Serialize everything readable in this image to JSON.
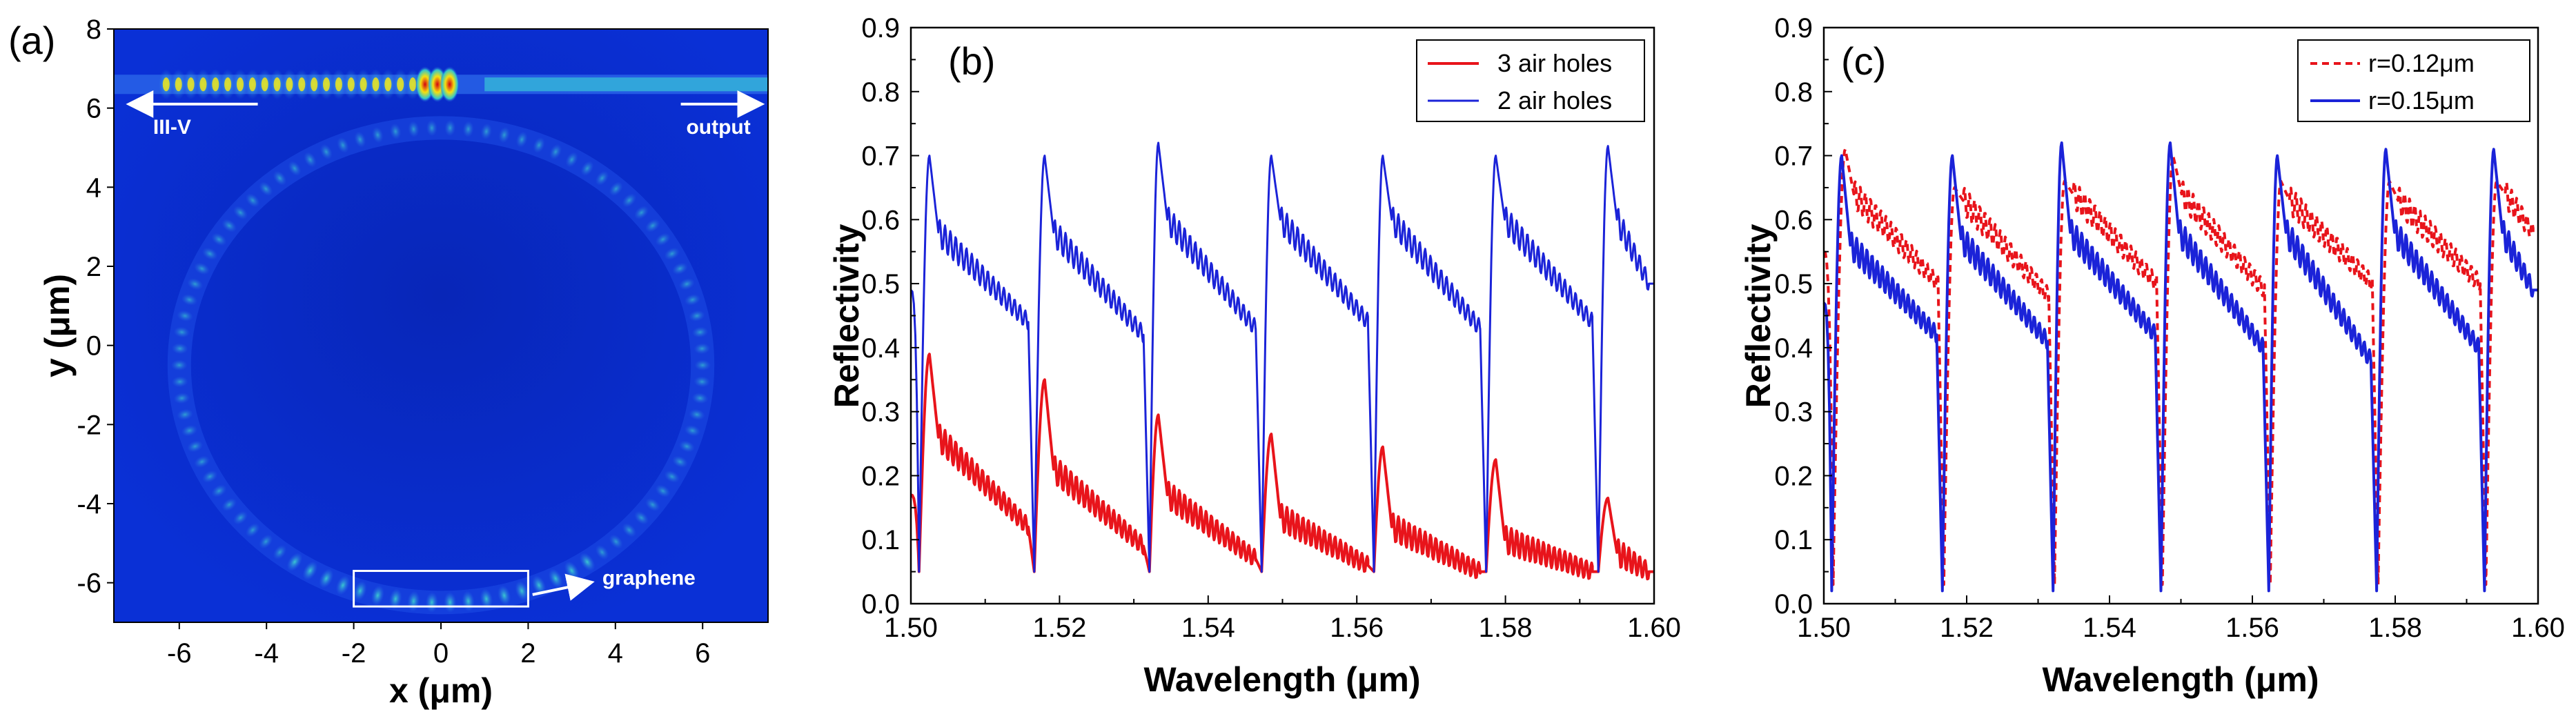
{
  "chart_data": [
    {
      "id": "a",
      "type": "heatmap",
      "panel_label": "(a)",
      "title": "",
      "xlabel": "x (μm)",
      "ylabel": "y (μm)",
      "xlim": [
        -7.5,
        7.5
      ],
      "ylim": [
        -7,
        8
      ],
      "x_ticks": [
        "-6",
        "-4",
        "-2",
        "0",
        "2",
        "4",
        "6"
      ],
      "y_ticks": [
        "8",
        "6",
        "4",
        "2",
        "0",
        "-2",
        "-4",
        "-6"
      ],
      "annotations": {
        "laser": "III-V",
        "output": "output",
        "graphene": "graphene"
      },
      "field": {
        "ring_center": [
          0,
          -0.5
        ],
        "ring_radii": [
          6.0,
          6.0
        ],
        "bus_waveguide_y": 6.6,
        "laser_section_x": [
          -6.3,
          0.2
        ],
        "graphene_box": {
          "x": [
            -2,
            2
          ],
          "y": [
            -6.6,
            -5.7
          ]
        }
      },
      "colors": {
        "background": "#0a2acc",
        "hot": "#d40010",
        "warm": "#f5e010",
        "mid": "#35c8c8"
      }
    },
    {
      "id": "b",
      "type": "line",
      "panel_label": "(b)",
      "title": "",
      "xlabel": "Wavelength (μm)",
      "ylabel": "Reflectivity",
      "xlim": [
        1.5,
        1.6
      ],
      "ylim": [
        0.0,
        0.9
      ],
      "x_ticks": [
        "1.50",
        "1.52",
        "1.54",
        "1.56",
        "1.58",
        "1.60"
      ],
      "y_ticks": [
        "0.0",
        "0.1",
        "0.2",
        "0.3",
        "0.4",
        "0.5",
        "0.6",
        "0.7",
        "0.8",
        "0.9"
      ],
      "legend_position": "top-right",
      "periods": {
        "x0": 1.5025,
        "spacing": 0.01515
      },
      "series": [
        {
          "name": "3 air holes",
          "color": "#e8141b",
          "dash": "solid",
          "dips": [
            1.5011,
            1.5166,
            1.5321,
            1.5472,
            1.5623,
            1.5774,
            1.5925
          ],
          "peaks": [
            1.5025,
            1.518,
            1.5333,
            1.5485,
            1.5635,
            1.5787,
            1.5938
          ],
          "peak_values": [
            0.39,
            0.35,
            0.295,
            0.265,
            0.245,
            0.225,
            0.165
          ],
          "tail_start": [
            0.26,
            0.21,
            0.17,
            0.135,
            0.12,
            0.1,
            0.08
          ],
          "tail_end": [
            0.12,
            0.09,
            0.07,
            0.06,
            0.05,
            0.05,
            0.05
          ],
          "dip_value": 0.05
        },
        {
          "name": "2 air holes",
          "color": "#1b23d8",
          "dash": "solid",
          "dips": [
            1.5011,
            1.5166,
            1.5321,
            1.5472,
            1.5623,
            1.5774,
            1.5925
          ],
          "peaks": [
            1.5025,
            1.518,
            1.5333,
            1.5485,
            1.5635,
            1.5787,
            1.5938
          ],
          "peak_values": [
            0.7,
            0.7,
            0.72,
            0.7,
            0.7,
            0.7,
            0.715
          ],
          "tail_start": [
            0.58,
            0.58,
            0.6,
            0.6,
            0.6,
            0.6,
            0.6
          ],
          "tail_end": [
            0.44,
            0.42,
            0.43,
            0.44,
            0.43,
            0.44,
            0.5
          ],
          "dip_value": 0.05
        }
      ]
    },
    {
      "id": "c",
      "type": "line",
      "panel_label": "(c)",
      "title": "",
      "xlabel": "Wavelength (μm)",
      "ylabel": "Reflectivity",
      "xlim": [
        1.5,
        1.6
      ],
      "ylim": [
        0.0,
        0.9
      ],
      "x_ticks": [
        "1.50",
        "1.52",
        "1.54",
        "1.56",
        "1.58",
        "1.60"
      ],
      "y_ticks": [
        "0.0",
        "0.1",
        "0.2",
        "0.3",
        "0.4",
        "0.5",
        "0.6",
        "0.7",
        "0.8",
        "0.9"
      ],
      "legend_position": "top-right",
      "series": [
        {
          "name": "r=0.12μm",
          "color": "#e8141b",
          "dash": "dashed",
          "dips": [
            1.5013,
            1.5168,
            1.5323,
            1.5474,
            1.5625,
            1.5776,
            1.5927
          ],
          "peaks": [
            1.503,
            1.5183,
            1.5337,
            1.5489,
            1.564,
            1.5792,
            1.5942
          ],
          "peak_values": [
            0.71,
            0.65,
            0.66,
            0.7,
            0.66,
            0.66,
            0.66
          ],
          "tail_start": [
            0.64,
            0.63,
            0.64,
            0.64,
            0.63,
            0.63,
            0.64
          ],
          "tail_end": [
            0.5,
            0.48,
            0.5,
            0.49,
            0.5,
            0.5,
            0.58
          ],
          "dip_value": 0.03
        },
        {
          "name": "r=0.15μm",
          "color": "#1b23d8",
          "dash": "solid",
          "dips": [
            1.5011,
            1.5166,
            1.5321,
            1.5472,
            1.5623,
            1.5774,
            1.5925
          ],
          "peaks": [
            1.5025,
            1.518,
            1.5333,
            1.5485,
            1.5635,
            1.5787,
            1.5938
          ],
          "peak_values": [
            0.7,
            0.7,
            0.72,
            0.72,
            0.7,
            0.71,
            0.71
          ],
          "tail_start": [
            0.56,
            0.57,
            0.58,
            0.58,
            0.58,
            0.58,
            0.58
          ],
          "tail_end": [
            0.42,
            0.41,
            0.42,
            0.4,
            0.38,
            0.4,
            0.49
          ],
          "dip_value": 0.02
        }
      ]
    }
  ]
}
